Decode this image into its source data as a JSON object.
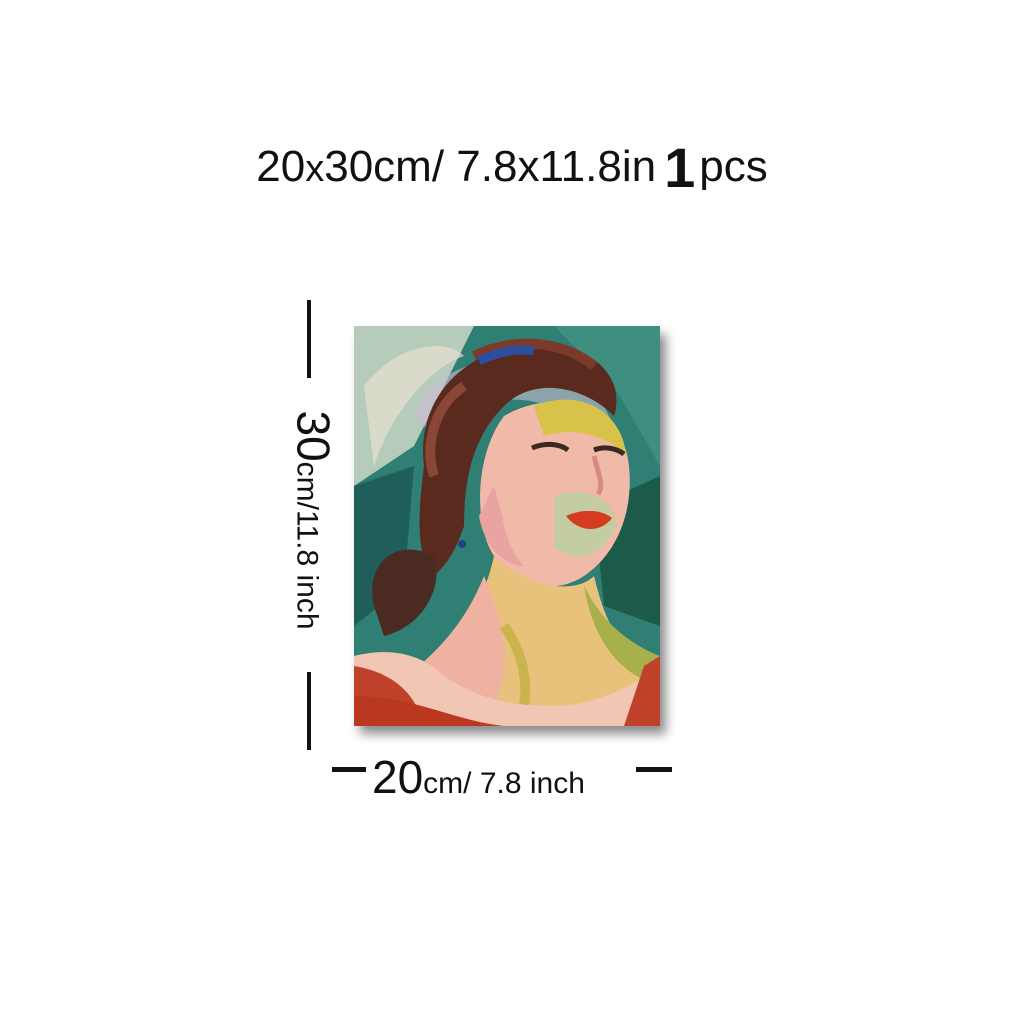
{
  "title": {
    "size_a": "20",
    "x": "x",
    "size_b": "30cm/ 7.8x11.8in",
    "quantity_number": "1",
    "quantity_unit": "pcs"
  },
  "dimensions": {
    "height_value": "30",
    "height_unit": "cm/11.8 inch",
    "width_value": "20",
    "width_unit": "cm/ 7.8 inch"
  },
  "product": {
    "icon": "portrait-painting-icon",
    "colors": {
      "background_teal": "#2f7f74",
      "hair_brown": "#5a2a1e",
      "skin_pink": "#f0b9a8",
      "skin_yellow": "#d8c24a",
      "lips_red": "#d63a1f",
      "dress_red": "#c0412a"
    }
  }
}
